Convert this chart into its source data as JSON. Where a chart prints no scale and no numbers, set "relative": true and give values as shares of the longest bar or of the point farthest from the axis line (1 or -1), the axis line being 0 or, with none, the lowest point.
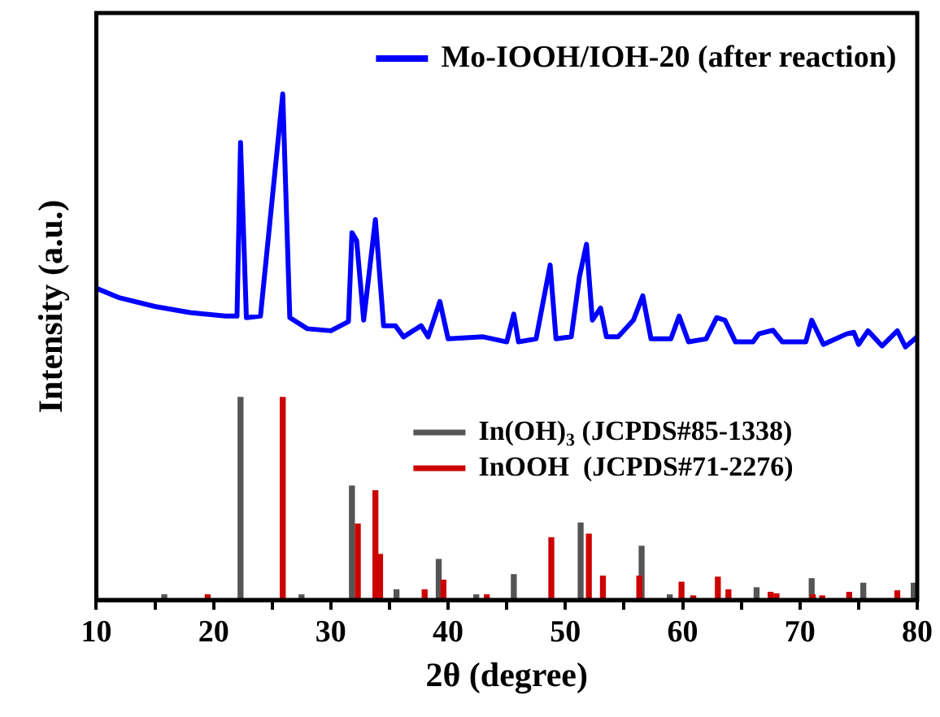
{
  "chart_data": {
    "type": "line",
    "relative": true,
    "xlabel": "2θ (degree)",
    "ylabel": "Intensity (a.u.)",
    "xlim": [
      10,
      80
    ],
    "xticks": [
      10,
      {
        "value": 15,
        "label": null
      },
      20,
      {
        "value": 25,
        "label": null
      },
      30,
      {
        "value": 35,
        "label": null
      },
      40,
      {
        "value": 45,
        "label": null
      },
      50,
      {
        "value": 55,
        "label": null
      },
      60,
      {
        "value": 65,
        "label": null
      },
      70,
      {
        "value": 75,
        "label": null
      },
      80
    ],
    "legend": "top right",
    "grid": false,
    "marker": "none",
    "line_style": "solid",
    "series": [
      {
        "name": "Mo-IOOH/IOH-20 (after reaction)",
        "color": "#0000ff",
        "x": [
          10,
          12,
          15,
          18,
          21,
          22,
          22.3,
          22.8,
          24,
          25.9,
          26.5,
          28,
          30,
          31.5,
          31.8,
          32.2,
          32.8,
          33.8,
          34.5,
          35.5,
          36.2,
          37.7,
          38.3,
          39.3,
          40,
          43,
          45,
          45.6,
          46,
          47.5,
          48.7,
          49.2,
          50.5,
          51.2,
          51.8,
          52.3,
          53,
          53.5,
          54.5,
          55.8,
          56.6,
          57.3,
          59,
          59.7,
          60.5,
          62,
          62.9,
          63.6,
          64.5,
          66,
          66.5,
          67.7,
          68.5,
          70.5,
          71,
          72,
          74,
          74.6,
          75,
          75.8,
          77,
          78.3,
          79,
          80
        ],
        "values": [
          0.616,
          0.597,
          0.58,
          0.568,
          0.561,
          0.561,
          0.904,
          0.558,
          0.561,
          1,
          0.558,
          0.536,
          0.532,
          0.55,
          0.726,
          0.71,
          0.553,
          0.752,
          0.542,
          0.542,
          0.52,
          0.542,
          0.52,
          0.59,
          0.516,
          0.52,
          0.51,
          0.565,
          0.51,
          0.516,
          0.662,
          0.516,
          0.52,
          0.639,
          0.703,
          0.553,
          0.577,
          0.52,
          0.52,
          0.553,
          0.601,
          0.516,
          0.516,
          0.561,
          0.51,
          0.516,
          0.558,
          0.553,
          0.51,
          0.51,
          0.526,
          0.533,
          0.51,
          0.51,
          0.553,
          0.505,
          0.526,
          0.529,
          0.505,
          0.532,
          0.502,
          0.532,
          0.5,
          0.52
        ]
      },
      {
        "name": "In(OH)$_{3}$ (JCPDS#85-1338)",
        "type": "bar",
        "color": "#555555",
        "x": [
          15.8,
          22.3,
          27.5,
          31.8,
          35.6,
          39.2,
          42.4,
          45.6,
          51.3,
          56.5,
          58.9,
          66.3,
          71,
          75.4,
          79.7
        ],
        "values": [
          0.01,
          0.4,
          0.01,
          0.225,
          0.02,
          0.08,
          0.01,
          0.05,
          0.152,
          0.106,
          0.01,
          0.024,
          0.042,
          0.033,
          0.033
        ]
      },
      {
        "name": "InOOH  (JCPDS#71-2276)",
        "type": "bar",
        "color": "#cc0000",
        "x": [
          19.5,
          25.9,
          32.3,
          33.8,
          34.2,
          38,
          39.6,
          43.3,
          48.8,
          52,
          53.2,
          56.3,
          59.9,
          60.9,
          63,
          63.9,
          67.5,
          68,
          71.1,
          71.9,
          74.2,
          78.3
        ],
        "values": [
          0.01,
          0.4,
          0.15,
          0.216,
          0.09,
          0.02,
          0.039,
          0.01,
          0.123,
          0.13,
          0.047,
          0.047,
          0.035,
          0.008,
          0.045,
          0.02,
          0.015,
          0.012,
          0.01,
          0.008,
          0.015,
          0.018
        ]
      }
    ]
  }
}
